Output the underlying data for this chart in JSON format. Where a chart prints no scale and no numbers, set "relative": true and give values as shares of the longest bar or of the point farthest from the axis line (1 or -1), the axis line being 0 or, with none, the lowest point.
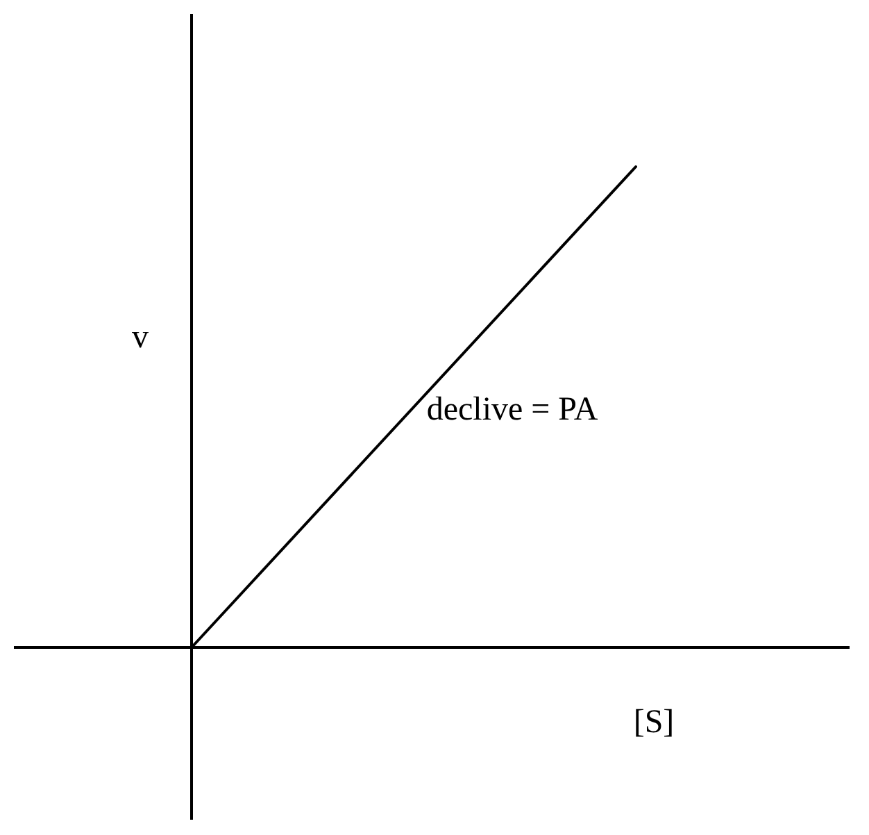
{
  "chart_data": {
    "type": "line",
    "relative": true,
    "categories": [
      null,
      null
    ],
    "series": [
      {
        "color": "#000000",
        "values": [
          0,
          1
        ]
      }
    ],
    "xlabel": "[S]",
    "ylabel": "v",
    "annotations": [
      "declive = PA"
    ],
    "marker": "none"
  }
}
